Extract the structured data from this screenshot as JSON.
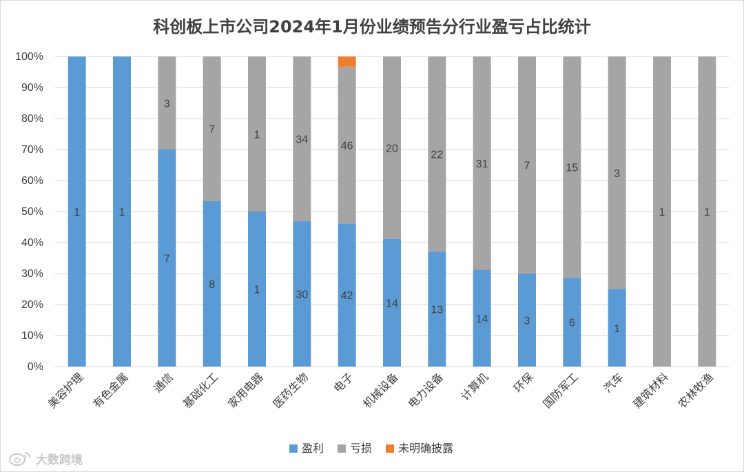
{
  "colors": {
    "profit": "#5b9bd5",
    "loss": "#a5a5a5",
    "unclear": "#ed7d31",
    "grid": "#d9d9d9",
    "text": "#404040"
  },
  "watermark": {
    "text": "大数跨境",
    "icon": "weibo-style-logo-icon"
  },
  "chart_data": {
    "type": "bar",
    "stacked": "percent",
    "title": "科创板上市公司2024年1月份业绩预告分行业盈亏占比统计",
    "xlabel": "",
    "ylabel": "",
    "ylim": [
      0,
      100
    ],
    "y_ticks": [
      "0%",
      "10%",
      "20%",
      "30%",
      "40%",
      "50%",
      "60%",
      "70%",
      "80%",
      "90%",
      "100%"
    ],
    "grid": true,
    "legend_position": "bottom",
    "categories": [
      "美容护理",
      "有色金属",
      "通信",
      "基础化工",
      "家用电器",
      "医药生物",
      "电子",
      "机械设备",
      "电力设备",
      "计算机",
      "环保",
      "国防军工",
      "汽车",
      "建筑材料",
      "农林牧渔"
    ],
    "series": [
      {
        "name": "盈利",
        "key": "profit",
        "values": [
          1,
          1,
          7,
          8,
          1,
          30,
          42,
          14,
          13,
          14,
          3,
          6,
          1,
          0,
          0
        ]
      },
      {
        "name": "亏损",
        "key": "loss",
        "values": [
          0,
          0,
          3,
          7,
          1,
          34,
          46,
          20,
          22,
          31,
          7,
          15,
          3,
          1,
          1
        ]
      },
      {
        "name": "未明确披露",
        "key": "unclear",
        "values": [
          0,
          0,
          0,
          0,
          0,
          0,
          3,
          0,
          0,
          0,
          0,
          0,
          0,
          0,
          0
        ]
      }
    ]
  }
}
